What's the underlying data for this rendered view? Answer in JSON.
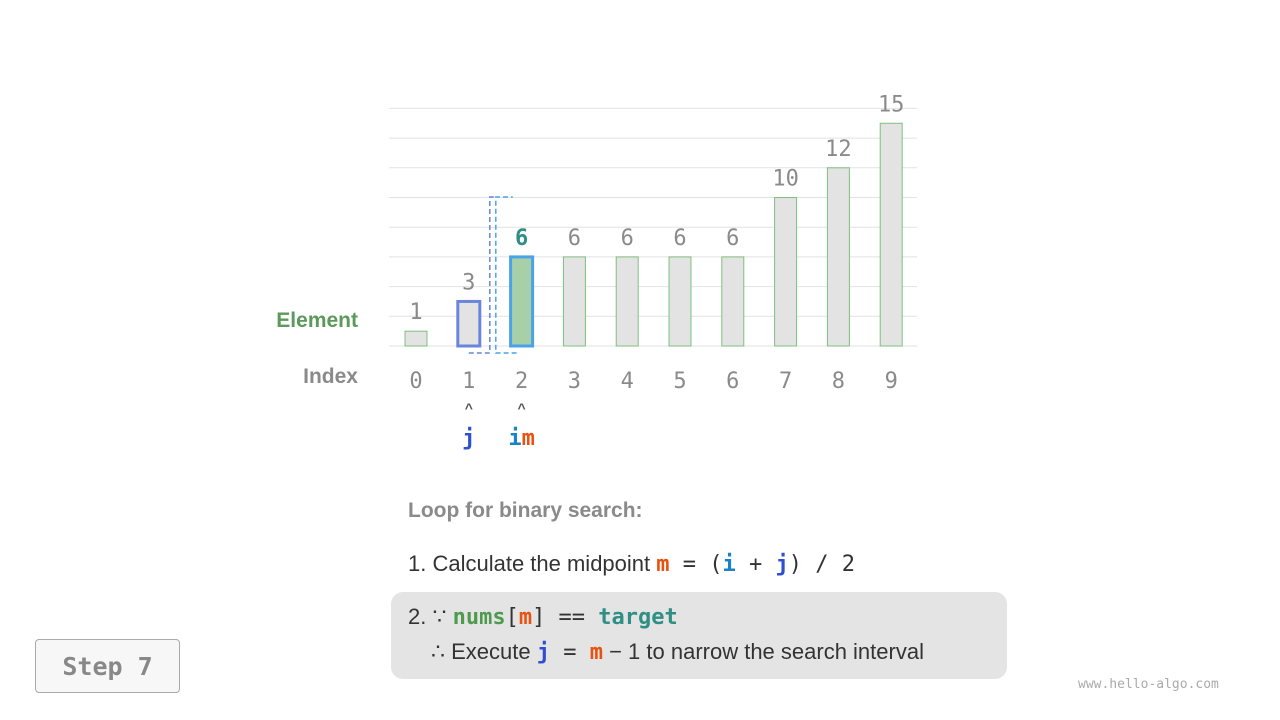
{
  "labels": {
    "element": "Element",
    "index": "Index"
  },
  "array": [
    1,
    3,
    6,
    6,
    6,
    6,
    6,
    10,
    12,
    15
  ],
  "pointers": {
    "j": {
      "label": "j",
      "index": 1
    },
    "i": {
      "label": "i",
      "index": 2
    },
    "m": {
      "label": "m",
      "index": 2
    }
  },
  "highlight": {
    "mid_index": 2,
    "j_index": 1
  },
  "colors": {
    "bar": "#e3e3e3",
    "bar_border": "#7fbf7f",
    "mid_fill": "#a8d0a8",
    "i_blue": "#4aa3e8",
    "j_blue": "#6a86dc",
    "value_text": "#8a8a8a",
    "mid_value": "#2f8f84"
  },
  "explain": {
    "title": "Loop for binary search:",
    "line1": {
      "prefix": "1. Calculate the midpoint ",
      "m": "m",
      "eq": " = (",
      "i": "i",
      "plus": " + ",
      "j": "j",
      "rest": ") / 2"
    },
    "line2": {
      "prefix": "2. ∵ ",
      "nums": "nums",
      "lb": "[",
      "m": "m",
      "rb": "]",
      "eq": " == ",
      "target": "target"
    },
    "line3": {
      "prefix": "∴ Execute ",
      "j": "j",
      "eq": " = ",
      "m": "m",
      "rest": " − 1 to narrow the search interval"
    }
  },
  "step": "Step 7",
  "watermark": "www.hello-algo.com"
}
